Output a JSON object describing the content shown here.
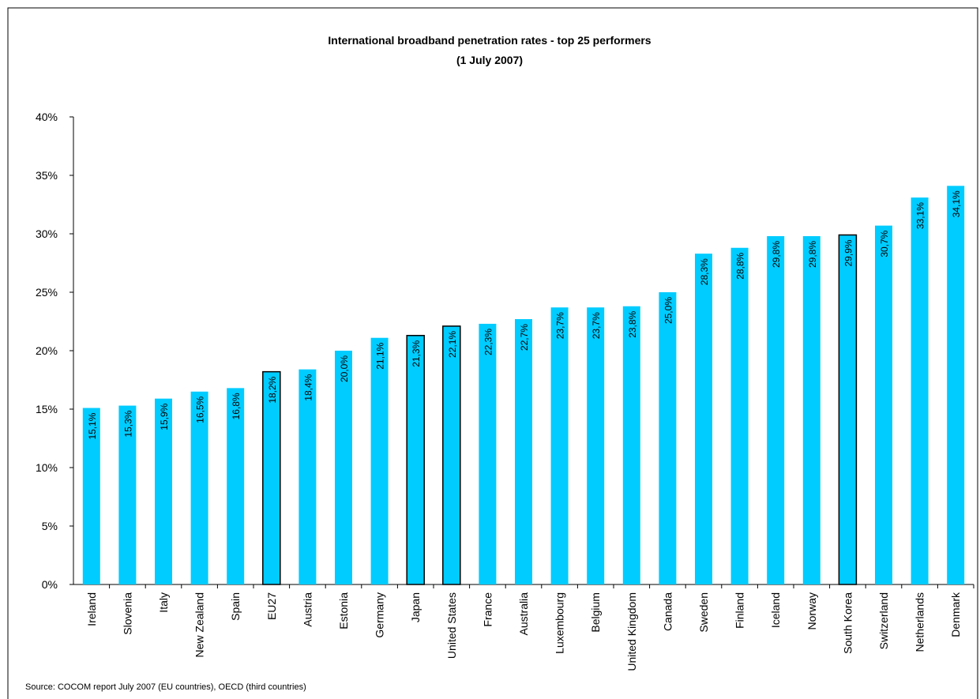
{
  "chart_data": {
    "type": "bar",
    "title": "International broadband penetration rates - top 25 performers",
    "subtitle": "(1 July 2007)",
    "source": "Source: COCOM report July 2007 (EU countries), OECD (third countries)",
    "categories": [
      "Ireland",
      "Slovenia",
      "Italy",
      "New Zealand",
      "Spain",
      "EU27",
      "Austria",
      "Estonia",
      "Germany",
      "Japan",
      "United States",
      "France",
      "Australia",
      "Luxembourg",
      "Belgium",
      "United Kingdom",
      "Canada",
      "Sweden",
      "Finland",
      "Iceland",
      "Norway",
      "South Korea",
      "Switzerland",
      "Netherlands",
      "Denmark"
    ],
    "values": [
      15.1,
      15.3,
      15.9,
      16.5,
      16.8,
      18.2,
      18.4,
      20.0,
      21.1,
      21.3,
      22.1,
      22.3,
      22.7,
      23.7,
      23.7,
      23.8,
      25.0,
      28.3,
      28.8,
      29.8,
      29.8,
      29.9,
      30.7,
      33.1,
      34.1
    ],
    "value_labels": [
      "15,1%",
      "15,3%",
      "15,9%",
      "16,5%",
      "16,8%",
      "18,2%",
      "18,4%",
      "20,0%",
      "21,1%",
      "21,3%",
      "22,1%",
      "22,3%",
      "22,7%",
      "23,7%",
      "23,7%",
      "23,8%",
      "25,0%",
      "28,3%",
      "28,8%",
      "29,8%",
      "29,8%",
      "29,9%",
      "30,7%",
      "33,1%",
      "34,1%"
    ],
    "color": "#00ccff",
    "edge_colors": [
      "none",
      "none",
      "none",
      "none",
      "none",
      "#000000",
      "none",
      "none",
      "none",
      "#000000",
      "#000000",
      "none",
      "none",
      "none",
      "none",
      "none",
      "none",
      "none",
      "none",
      "none",
      "none",
      "#000000",
      "none",
      "none",
      "none"
    ],
    "ylim": [
      0,
      40
    ],
    "yticks": [
      {
        "value": 0,
        "label": "0%"
      },
      {
        "value": 5,
        "label": "5%"
      },
      {
        "value": 10,
        "label": "10%"
      },
      {
        "value": 15,
        "label": "15%"
      },
      {
        "value": 20,
        "label": "20%"
      },
      {
        "value": 25,
        "label": "25%"
      },
      {
        "value": 30,
        "label": "30%"
      },
      {
        "value": 35,
        "label": "35%"
      },
      {
        "value": 40,
        "label": "40%"
      }
    ],
    "grid": false
  }
}
